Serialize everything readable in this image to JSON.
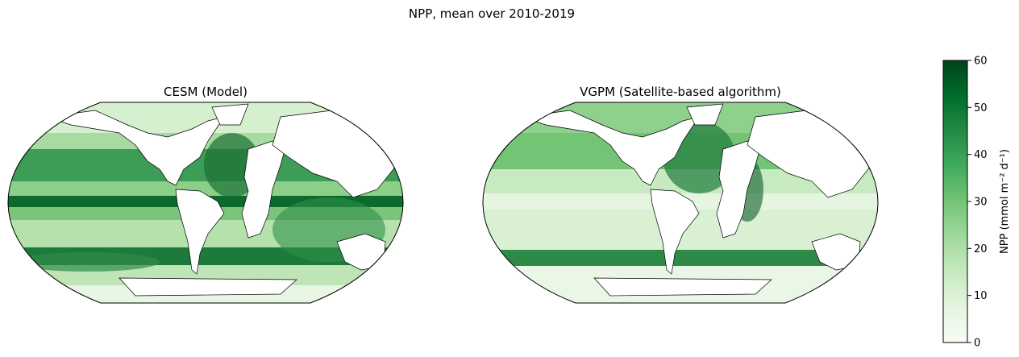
{
  "figure": {
    "suptitle": "NPP, mean over 2010-2019"
  },
  "panels": [
    {
      "title": "CESM (Model)"
    },
    {
      "title": "VGPM (Satellite-based algorithm)"
    }
  ],
  "colorbar": {
    "label": "NPP (mmol m⁻² d⁻¹)",
    "ticks": [
      "0",
      "10",
      "20",
      "30",
      "40",
      "50",
      "60"
    ],
    "range": [
      0,
      60
    ],
    "colormap": "Greens",
    "colors": [
      "#f7fcf5",
      "#e5f5e0",
      "#c7e9c0",
      "#a1d99b",
      "#74c476",
      "#41ab5d",
      "#238b45",
      "#006d2c",
      "#00441b"
    ]
  },
  "colors": {
    "land": "#ffffff",
    "coastline": "#000000"
  }
}
